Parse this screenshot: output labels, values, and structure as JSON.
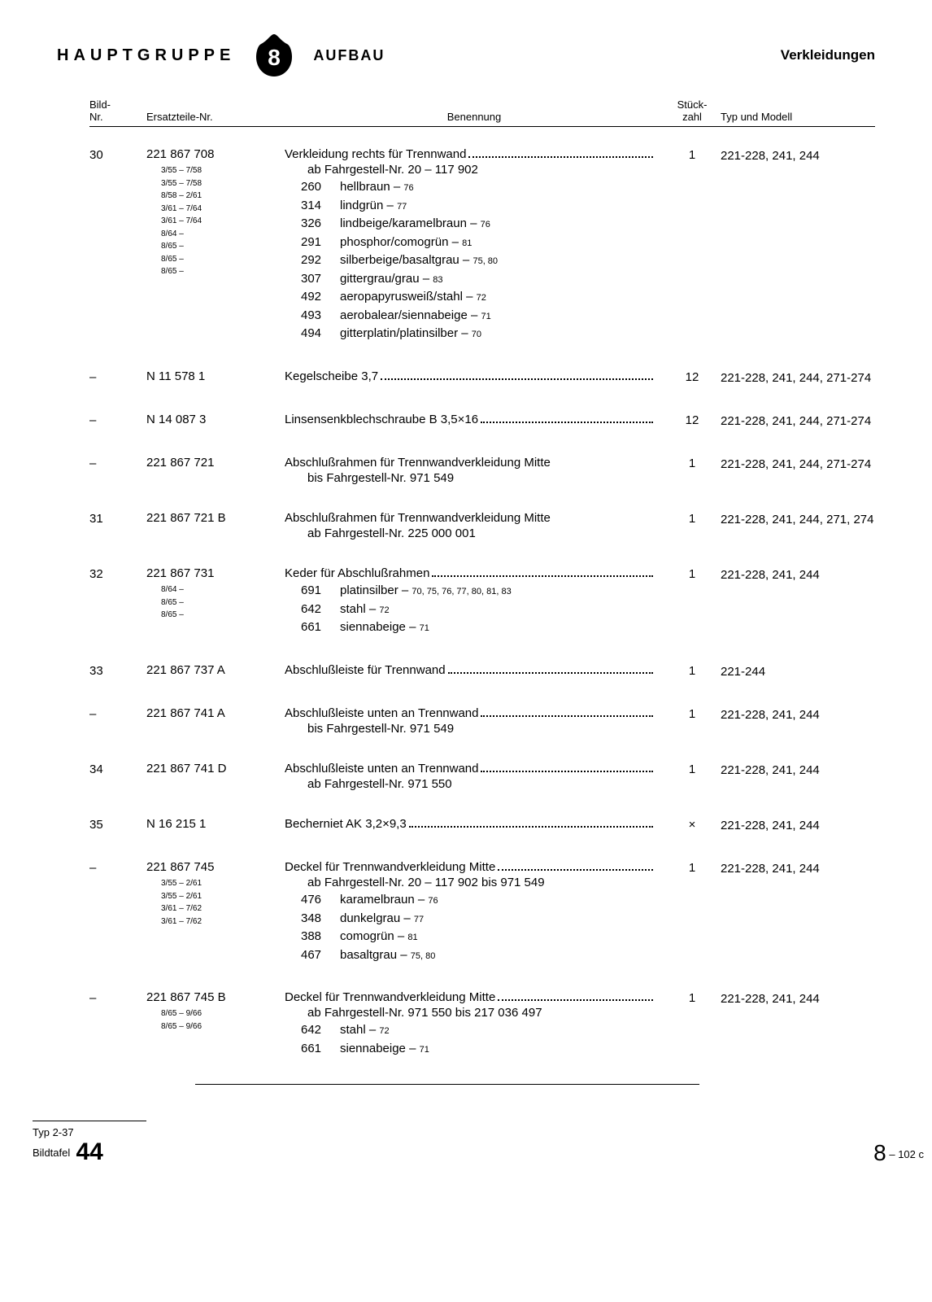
{
  "header": {
    "hauptgruppe": "HAUPTGRUPPE",
    "badge_number": "8",
    "aufbau": "AUFBAU",
    "verkleidungen": "Verkleidungen"
  },
  "columns": {
    "bild": "Bild-\nNr.",
    "ers": "Ersatzteile-Nr.",
    "ben": "Benennung",
    "stk": "Stück-\nzahl",
    "typ": "Typ und Modell"
  },
  "rows": [
    {
      "bild": "30",
      "ers_main": "221 867 708",
      "ers_subs": [
        "3/55 –  7/58",
        "3/55 –  7/58",
        "8/58 –  2/61",
        "3/61 –  7/64",
        "3/61 –  7/64",
        "8/64 –",
        "8/65 –",
        "8/65 –",
        "8/65 –"
      ],
      "ben_main": "Verkleidung rechts für Trennwand",
      "ben_cont": "ab Fahrgestell-Nr. 20 – 117 902",
      "ben_subs": [
        {
          "code": "260",
          "text": "hellbraun – ",
          "sm": "76"
        },
        {
          "code": "314",
          "text": "lindgrün – ",
          "sm": "77"
        },
        {
          "code": "326",
          "text": "lindbeige/karamelbraun – ",
          "sm": "76"
        },
        {
          "code": "291",
          "text": "phosphor/comogrün – ",
          "sm": "81"
        },
        {
          "code": "292",
          "text": "silberbeige/basaltgrau – ",
          "sm": "75, 80"
        },
        {
          "code": "307",
          "text": "gittergrau/grau – ",
          "sm": "83"
        },
        {
          "code": "492",
          "text": "aeropapyrusweiß/stahl – ",
          "sm": "72"
        },
        {
          "code": "493",
          "text": "aerobalear/siennabeige – ",
          "sm": "71"
        },
        {
          "code": "494",
          "text": "gitterplatin/platinsilber – ",
          "sm": "70"
        }
      ],
      "stk": "1",
      "typ": "221-228, 241, 244"
    },
    {
      "bild": "–",
      "ers_main": "N 11 578 1",
      "ben_main": "Kegelscheibe 3,7",
      "stk": "12",
      "typ": "221-228, 241, 244, 271-274"
    },
    {
      "bild": "–",
      "ers_main": "N 14 087 3",
      "ben_main": "Linsensenkblechschraube B 3,5×16",
      "stk": "12",
      "typ": "221-228, 241, 244, 271-274"
    },
    {
      "bild": "–",
      "ers_main": "221 867 721",
      "ben_main": "Abschlußrahmen für Trennwandverkleidung Mitte",
      "ben_cont": "bis Fahrgestell-Nr. 971 549",
      "stk": "1",
      "typ": "221-228, 241, 244, 271-274",
      "no_dots": true
    },
    {
      "bild": "31",
      "ers_main": "221 867 721 B",
      "ben_main": "Abschlußrahmen für Trennwandverkleidung Mitte",
      "ben_cont": "ab Fahrgestell-Nr. 225 000 001",
      "stk": "1",
      "typ": "221-228, 241, 244, 271, 274",
      "no_dots": true
    },
    {
      "bild": "32",
      "ers_main": "221 867 731",
      "ers_subs": [
        "8/64 –",
        "8/65 –",
        "8/65 –"
      ],
      "ben_main": "Keder für Abschlußrahmen",
      "ben_subs": [
        {
          "code": "691",
          "text": "platinsilber – ",
          "sm": "70, 75, 76, 77, 80, 81, 83"
        },
        {
          "code": "642",
          "text": "stahl – ",
          "sm": "72"
        },
        {
          "code": "661",
          "text": "siennabeige – ",
          "sm": "71"
        }
      ],
      "stk": "1",
      "typ": "221-228, 241, 244"
    },
    {
      "bild": "33",
      "ers_main": "221 867 737 A",
      "ben_main": "Abschlußleiste für Trennwand",
      "stk": "1",
      "typ": "221-244"
    },
    {
      "bild": "–",
      "ers_main": "221 867 741 A",
      "ben_main": "Abschlußleiste unten an Trennwand",
      "ben_cont": "bis Fahrgestell-Nr. 971 549",
      "stk": "1",
      "typ": "221-228, 241, 244"
    },
    {
      "bild": "34",
      "ers_main": "221 867 741 D",
      "ben_main": "Abschlußleiste unten an Trennwand",
      "ben_cont": "ab Fahrgestell-Nr. 971 550",
      "stk": "1",
      "typ": "221-228, 241, 244"
    },
    {
      "bild": "35",
      "ers_main": "N 16 215 1",
      "ben_main": "Becherniet AK 3,2×9,3",
      "stk": "×",
      "typ": "221-228, 241, 244"
    },
    {
      "bild": "–",
      "ers_main": "221 867 745",
      "ers_subs": [
        "3/55 –  2/61",
        "3/55 –  2/61",
        "3/61 –  7/62",
        "3/61 –  7/62"
      ],
      "ben_main": "Deckel für Trennwandverkleidung Mitte",
      "ben_cont": "ab Fahrgestell-Nr. 20 – 117 902 bis 971 549",
      "ben_subs": [
        {
          "code": "476",
          "text": "karamelbraun – ",
          "sm": "76"
        },
        {
          "code": "348",
          "text": "dunkelgrau – ",
          "sm": "77"
        },
        {
          "code": "388",
          "text": "comogrün – ",
          "sm": "81"
        },
        {
          "code": "467",
          "text": "basaltgrau – ",
          "sm": "75, 80"
        }
      ],
      "stk": "1",
      "typ": "221-228, 241, 244"
    },
    {
      "bild": "–",
      "ers_main": "221 867 745 B",
      "ers_subs": [
        "8/65 –  9/66",
        "8/65 –  9/66"
      ],
      "ben_main": "Deckel für Trennwandverkleidung Mitte",
      "ben_cont": "ab Fahrgestell-Nr. 971 550 bis 217 036 497",
      "ben_subs": [
        {
          "code": "642",
          "text": "stahl – ",
          "sm": "72"
        },
        {
          "code": "661",
          "text": "siennabeige – ",
          "sm": "71"
        }
      ],
      "stk": "1",
      "typ": "221-228, 241, 244"
    }
  ],
  "footer": {
    "typ": "Typ 2-37",
    "bildtafel_label": "Bildtafel",
    "bildtafel_num": "44",
    "right_big": "8",
    "right_small": " – 102 c"
  }
}
